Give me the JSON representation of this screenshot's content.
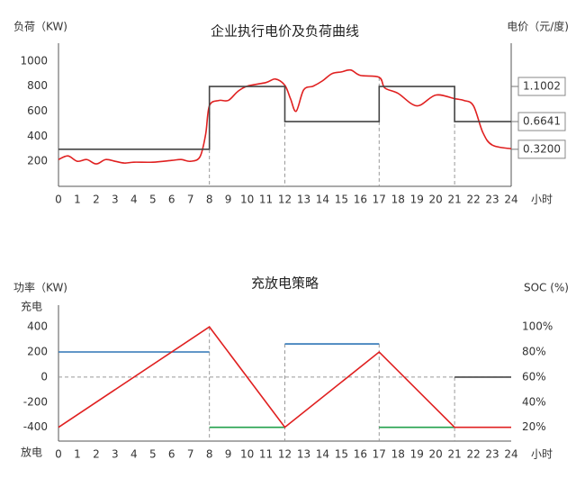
{
  "chart_data": [
    {
      "type": "line",
      "title": "企业执行电价及负荷曲线",
      "y_label": "负荷（KW)",
      "y2_label": "电价（元/度)",
      "x_label": "小时",
      "xlim": [
        0,
        24
      ],
      "xticks": [
        0,
        1,
        2,
        3,
        4,
        5,
        6,
        7,
        8,
        9,
        10,
        11,
        12,
        13,
        14,
        15,
        16,
        17,
        18,
        19,
        20,
        21,
        22,
        23,
        24
      ],
      "ylim": [
        0,
        1100
      ],
      "yticks": [
        200,
        400,
        600,
        800,
        1000
      ],
      "ytick_color": "#e02020",
      "y2lim": [
        -0.14,
        1.57
      ],
      "dividers": [
        8,
        12,
        17,
        21
      ],
      "right_spine": true,
      "series": [
        {
          "color": "#e02020",
          "smooth": true,
          "x": [
            0,
            0.5,
            1,
            1.5,
            2,
            2.5,
            3,
            3.5,
            4,
            5,
            6,
            6.5,
            7,
            7.5,
            7.8,
            8,
            8.5,
            9,
            9.5,
            10,
            11,
            11.5,
            12,
            12.3,
            12.6,
            13,
            13.5,
            14,
            14.5,
            15,
            15.5,
            16,
            17,
            17.3,
            18,
            19,
            20,
            21,
            21.5,
            22,
            22.5,
            23,
            24
          ],
          "values": [
            214,
            243,
            200,
            214,
            179,
            214,
            200,
            186,
            193,
            193,
            207,
            214,
            200,
            236,
            414,
            643,
            686,
            686,
            757,
            800,
            829,
            857,
            807,
            700,
            600,
            771,
            800,
            843,
            900,
            914,
            929,
            886,
            871,
            786,
            743,
            643,
            729,
            700,
            686,
            643,
            429,
            329,
            300
          ]
        },
        {
          "color": "#444444",
          "axis": "y2",
          "x": [
            0,
            8,
            8,
            12,
            12,
            17,
            17,
            21,
            21,
            24
          ],
          "values": [
            0.32,
            0.32,
            1.1002,
            1.1002,
            0.6641,
            0.6641,
            1.1002,
            1.1002,
            0.6641,
            0.6641
          ]
        }
      ],
      "price_levels": [
        {
          "value": 1.1002,
          "label": "1.1002"
        },
        {
          "value": 0.6641,
          "label": "0.6641"
        },
        {
          "value": 0.32,
          "label": "0.3200"
        }
      ]
    },
    {
      "type": "line",
      "title": "充放电策略",
      "y_label": "功率（KW)",
      "y2_label": "SOC (%)",
      "x_label": "小时",
      "charge_label": "充电",
      "discharge_label": "放电",
      "charge_color": "#2e75b6",
      "discharge_color": "#22a04b",
      "xlim": [
        0,
        24
      ],
      "xticks": [
        0,
        1,
        2,
        3,
        4,
        5,
        6,
        7,
        8,
        9,
        10,
        11,
        12,
        13,
        14,
        15,
        16,
        17,
        18,
        19,
        20,
        21,
        22,
        23,
        24
      ],
      "ylim": [
        -510,
        530
      ],
      "yticks": [
        400,
        200,
        0,
        -200,
        -400
      ],
      "y2lim": [
        9,
        113
      ],
      "y2ticks": [
        {
          "value": 100,
          "label": "100%"
        },
        {
          "value": 80,
          "label": "80%"
        },
        {
          "value": 60,
          "label": "60%"
        },
        {
          "value": 40,
          "label": "40%"
        },
        {
          "value": 20,
          "label": "20%"
        }
      ],
      "y2tick_color": "#e02020",
      "dividers": [
        8,
        12,
        17,
        21
      ],
      "zero_line": true,
      "series": [
        {
          "color": "#2e75b6",
          "x": [
            0,
            8
          ],
          "values": [
            200,
            200
          ]
        },
        {
          "color": "#22a04b",
          "x": [
            8,
            12
          ],
          "values": [
            -400,
            -400
          ]
        },
        {
          "color": "#2e75b6",
          "x": [
            12,
            17
          ],
          "values": [
            264,
            264
          ]
        },
        {
          "color": "#22a04b",
          "x": [
            17,
            21
          ],
          "values": [
            -400,
            -400
          ]
        },
        {
          "color": "#444444",
          "x": [
            21,
            24
          ],
          "values": [
            0,
            0
          ]
        },
        {
          "color": "#e02020",
          "axis": "y2",
          "x": [
            0,
            8,
            12,
            17,
            21,
            24
          ],
          "values": [
            20,
            100,
            20,
            80,
            20,
            20
          ]
        }
      ]
    }
  ]
}
